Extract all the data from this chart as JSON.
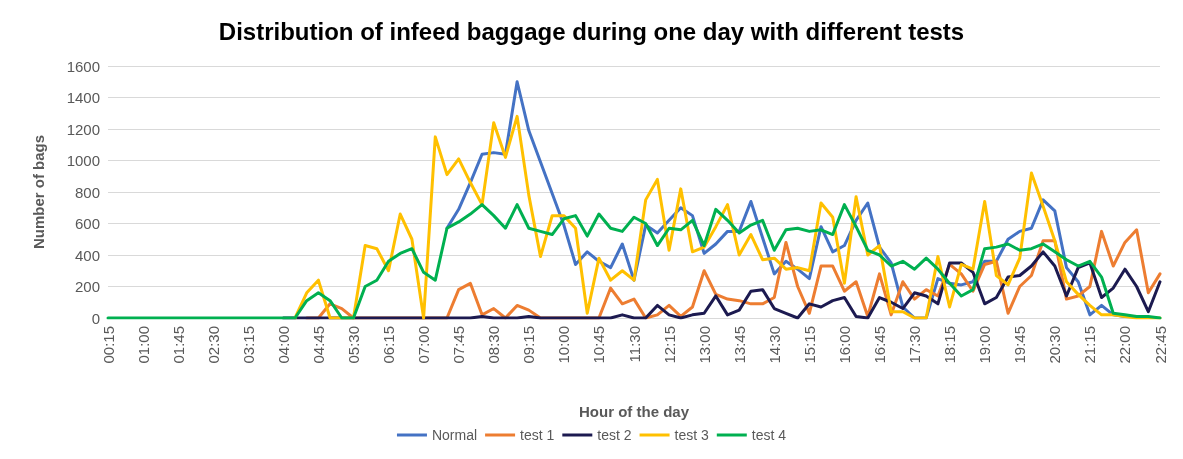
{
  "chart_data": {
    "type": "line",
    "title": "Distribution of infeed baggage during one day with different tests",
    "xlabel": "Hour of the day",
    "ylabel": "Number of bags",
    "categories": [
      "00:15",
      null,
      null,
      "01:00",
      null,
      null,
      "01:45",
      null,
      null,
      "02:30",
      null,
      null,
      "03:15",
      null,
      null,
      "04:00",
      null,
      null,
      "04:45",
      null,
      null,
      "05:30",
      null,
      null,
      "06:15",
      null,
      null,
      "07:00",
      null,
      null,
      "07:45",
      null,
      null,
      "08:30",
      null,
      null,
      "09:15",
      null,
      null,
      "10:00",
      null,
      null,
      "10:45",
      null,
      null,
      "11:30",
      null,
      null,
      "12:15",
      null,
      null,
      "13:00",
      null,
      null,
      "13:45",
      null,
      null,
      "14:30",
      null,
      null,
      "15:15",
      null,
      null,
      "16:00",
      null,
      null,
      "16:45",
      null,
      null,
      "17:30",
      null,
      null,
      "18:15",
      null,
      null,
      "19:00",
      null,
      null,
      "19:45",
      null,
      null,
      "20:30",
      null,
      null,
      "21:15",
      null,
      null,
      "22:00",
      null,
      null,
      "22:45"
    ],
    "series": [
      {
        "name": "Normal",
        "color": "#4472c4",
        "values": [
          null,
          null,
          null,
          null,
          null,
          null,
          null,
          null,
          null,
          null,
          null,
          null,
          null,
          null,
          null,
          null,
          null,
          null,
          null,
          null,
          null,
          null,
          null,
          null,
          null,
          null,
          null,
          null,
          null,
          570,
          690,
          860,
          1040,
          1050,
          1040,
          1500,
          1190,
          990,
          790,
          590,
          340,
          420,
          360,
          320,
          470,
          240,
          590,
          540,
          620,
          700,
          650,
          410,
          470,
          550,
          550,
          740,
          510,
          280,
          360,
          310,
          250,
          580,
          420,
          460,
          620,
          730,
          450,
          350,
          70,
          0,
          0,
          250,
          220,
          210,
          230,
          360,
          360,
          500,
          550,
          570,
          750,
          680,
          320,
          230,
          20,
          80,
          20,
          10,
          null,
          null,
          null
        ]
      },
      {
        "name": "test 1",
        "color": "#ed7d31",
        "values": [
          null,
          null,
          null,
          null,
          null,
          null,
          null,
          null,
          null,
          null,
          null,
          null,
          null,
          null,
          null,
          null,
          null,
          0,
          0,
          90,
          60,
          0,
          0,
          0,
          0,
          0,
          0,
          0,
          0,
          0,
          180,
          220,
          20,
          60,
          0,
          80,
          50,
          0,
          0,
          0,
          0,
          0,
          0,
          190,
          90,
          120,
          0,
          20,
          80,
          10,
          70,
          300,
          150,
          120,
          110,
          90,
          90,
          130,
          480,
          200,
          30,
          330,
          330,
          170,
          230,
          10,
          280,
          20,
          230,
          120,
          180,
          140,
          340,
          280,
          170,
          340,
          360,
          30,
          200,
          270,
          490,
          490,
          120,
          140,
          200,
          550,
          330,
          480,
          560,
          160,
          280
        ]
      },
      {
        "name": "test 2",
        "color": "#1c1a50",
        "values": [
          null,
          null,
          null,
          null,
          null,
          null,
          null,
          null,
          null,
          null,
          null,
          null,
          null,
          null,
          null,
          0,
          0,
          0,
          0,
          0,
          0,
          0,
          0,
          0,
          0,
          0,
          0,
          0,
          0,
          0,
          0,
          0,
          10,
          0,
          0,
          0,
          10,
          0,
          0,
          0,
          0,
          0,
          0,
          0,
          20,
          0,
          0,
          80,
          20,
          0,
          20,
          30,
          140,
          20,
          50,
          170,
          180,
          60,
          30,
          0,
          90,
          70,
          110,
          130,
          10,
          0,
          130,
          100,
          60,
          160,
          140,
          90,
          350,
          350,
          290,
          90,
          130,
          260,
          270,
          330,
          420,
          330,
          140,
          320,
          350,
          130,
          190,
          310,
          200,
          40,
          230
        ]
      },
      {
        "name": "test 3",
        "color": "#ffc000",
        "values": [
          null,
          null,
          null,
          null,
          null,
          null,
          null,
          null,
          null,
          null,
          null,
          null,
          null,
          null,
          null,
          null,
          0,
          160,
          240,
          0,
          0,
          0,
          460,
          440,
          300,
          660,
          500,
          0,
          1150,
          910,
          1010,
          860,
          720,
          1240,
          1020,
          1280,
          780,
          390,
          650,
          650,
          570,
          30,
          380,
          240,
          300,
          240,
          750,
          880,
          430,
          820,
          420,
          450,
          580,
          720,
          400,
          530,
          370,
          380,
          310,
          320,
          300,
          730,
          640,
          220,
          770,
          400,
          460,
          40,
          40,
          0,
          0,
          390,
          70,
          340,
          310,
          740,
          270,
          210,
          380,
          920,
          710,
          490,
          230,
          150,
          80,
          20,
          20,
          10,
          0,
          0,
          0
        ]
      },
      {
        "name": "test 4",
        "color": "#00b050",
        "values": [
          0,
          0,
          0,
          0,
          0,
          0,
          0,
          0,
          0,
          0,
          0,
          0,
          0,
          0,
          0,
          0,
          0,
          110,
          160,
          110,
          0,
          0,
          200,
          240,
          360,
          410,
          440,
          290,
          240,
          570,
          610,
          660,
          720,
          650,
          570,
          720,
          570,
          550,
          530,
          630,
          650,
          520,
          660,
          570,
          550,
          640,
          600,
          460,
          570,
          560,
          620,
          460,
          690,
          620,
          540,
          590,
          620,
          430,
          560,
          570,
          550,
          560,
          530,
          720,
          580,
          430,
          400,
          330,
          360,
          310,
          380,
          310,
          220,
          140,
          180,
          440,
          450,
          470,
          430,
          440,
          470,
          420,
          370,
          330,
          360,
          260,
          30,
          20,
          10,
          10,
          0
        ]
      }
    ],
    "ylim": [
      0,
      1600
    ],
    "yticks": [
      0,
      200,
      400,
      600,
      800,
      1000,
      1200,
      1400,
      1600
    ],
    "grid": "y",
    "legend": "bottom",
    "marker": "none",
    "line_style": "solid"
  }
}
